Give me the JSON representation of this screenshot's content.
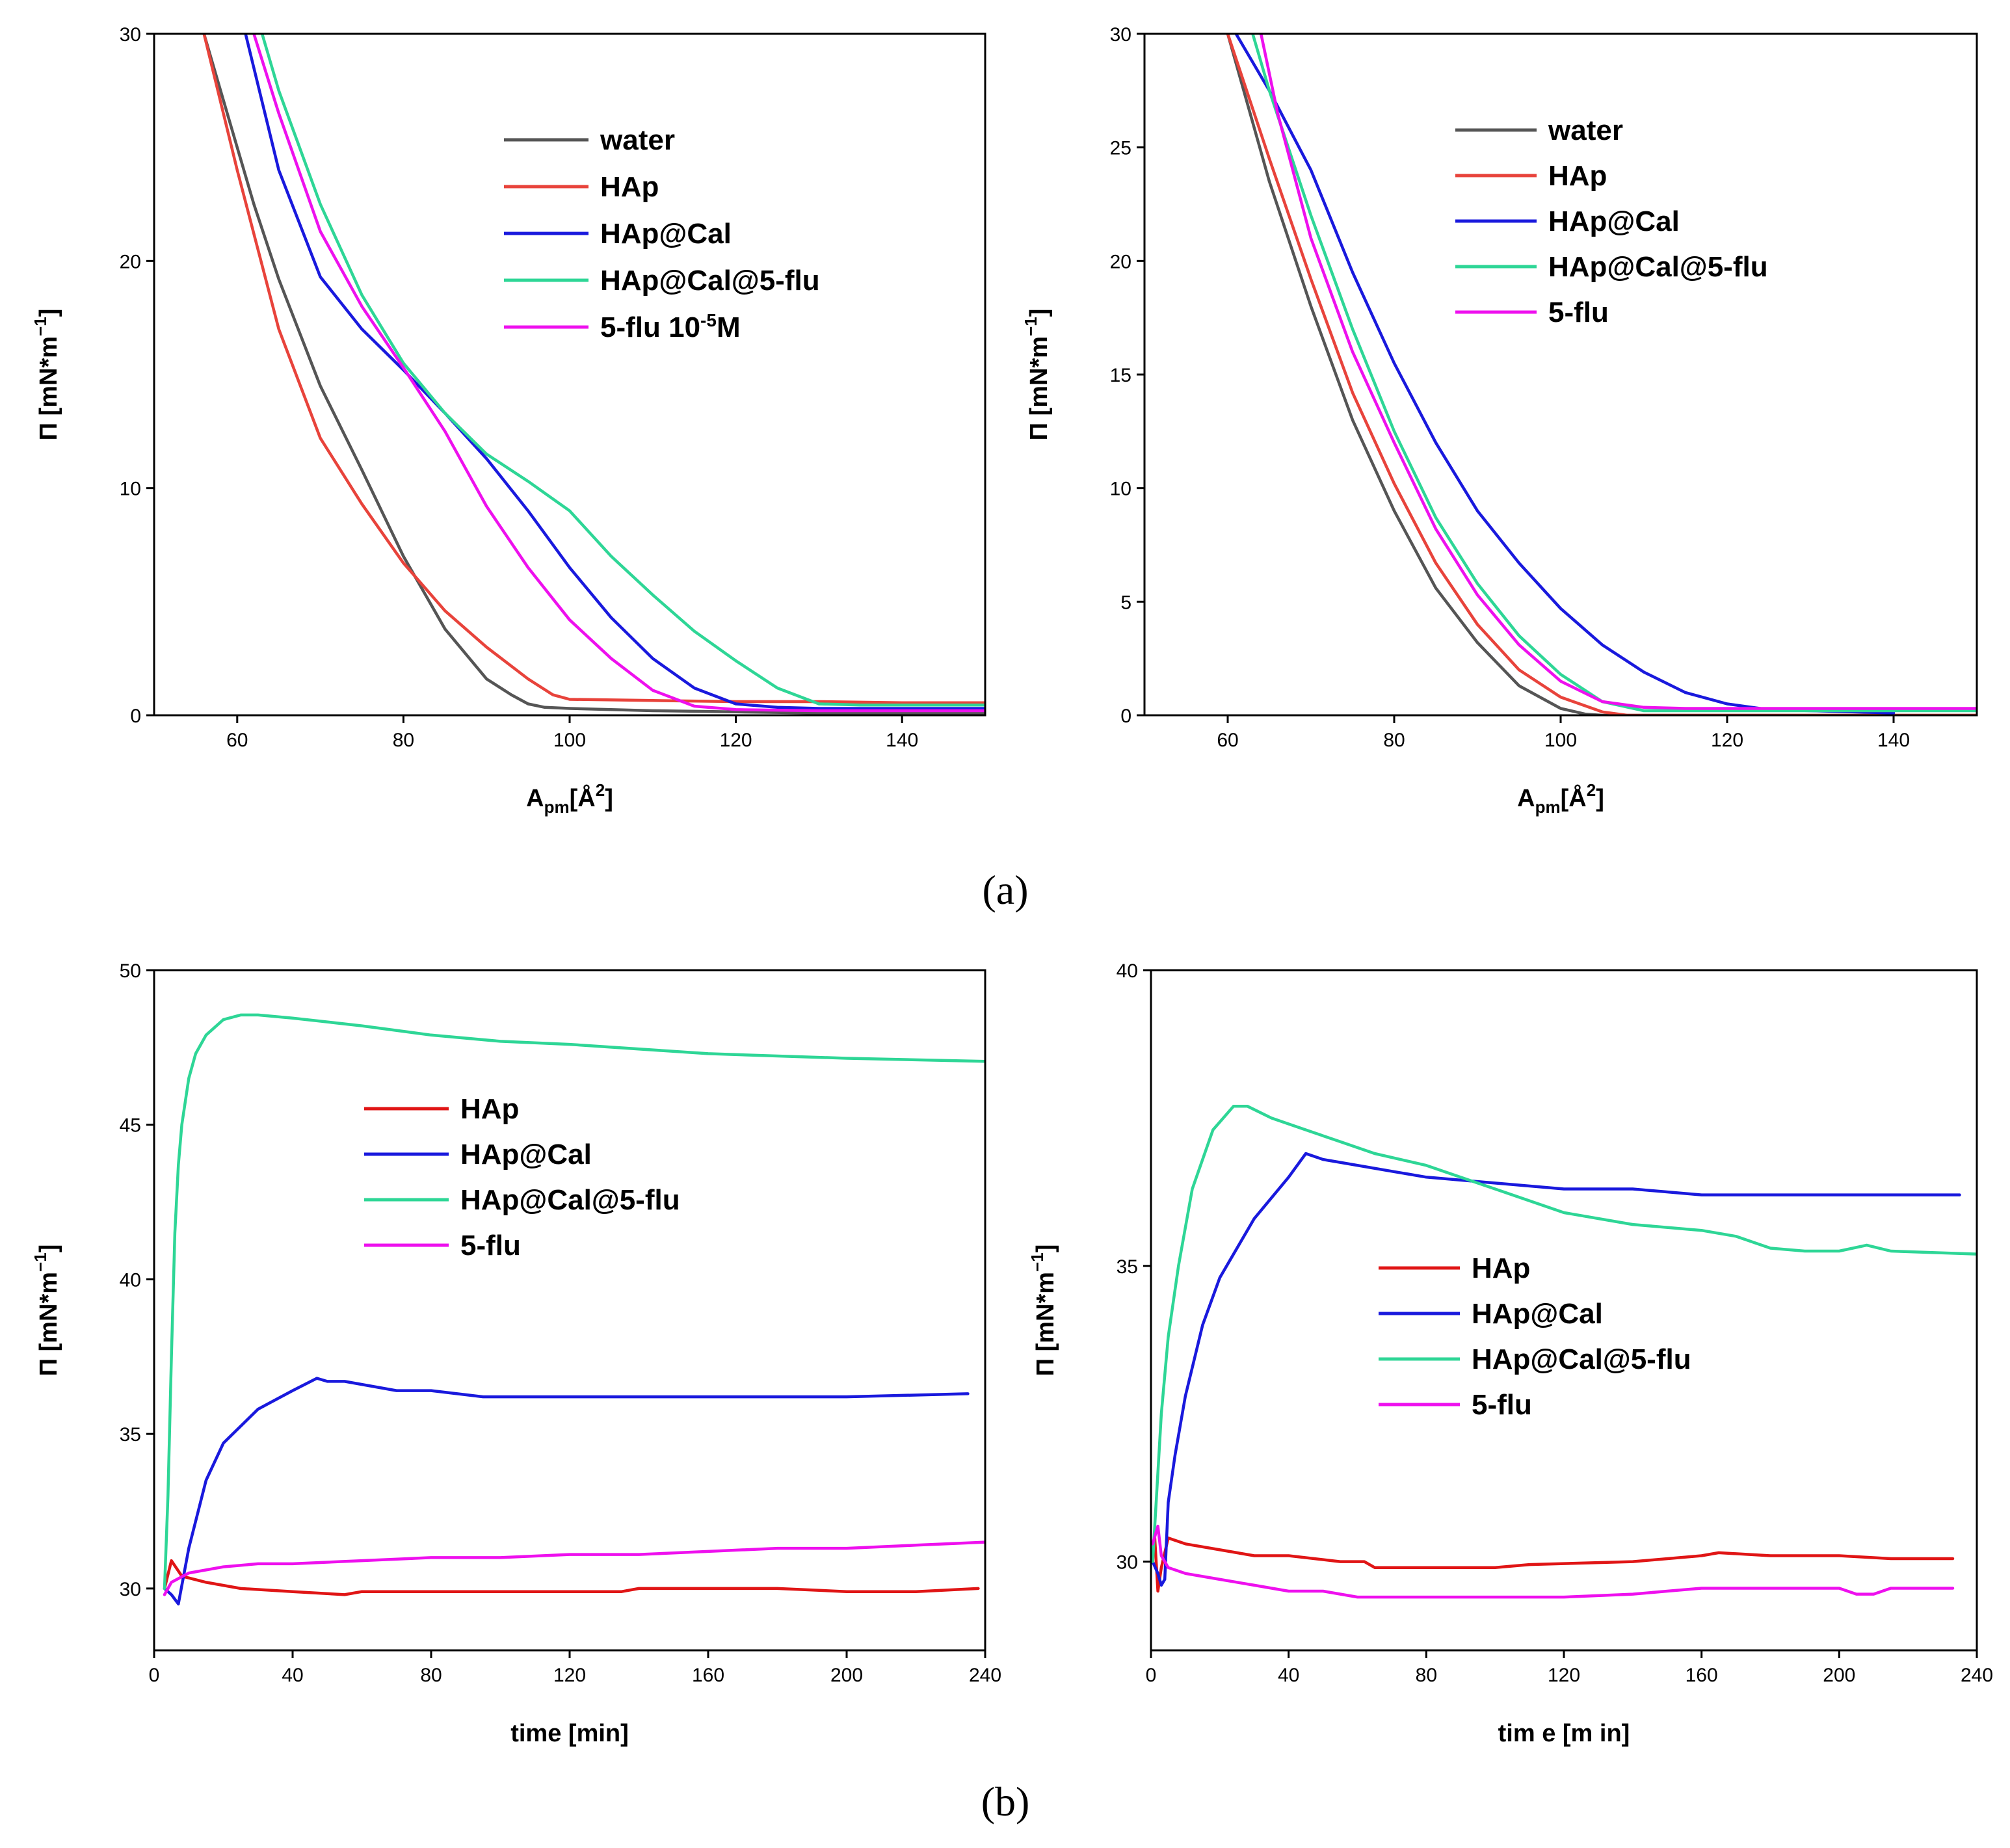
{
  "panel_labels": {
    "a": "(a)",
    "b": "(b)"
  },
  "chart_data": [
    {
      "type": "line",
      "id": "a1",
      "xlabel": {
        "main": "A",
        "sub": "pm",
        "rest": "[Å",
        "sup": "2",
        "end": "]"
      },
      "ylabel": {
        "main": "Π [mN*m",
        "sup": "−1",
        "end": "]"
      },
      "xlim": [
        50,
        150
      ],
      "ylim": [
        0,
        30
      ],
      "xticks": [
        60,
        80,
        100,
        120,
        140
      ],
      "yticks": [
        0,
        10,
        20,
        30
      ],
      "legend": "top-right",
      "series": [
        {
          "name": "water",
          "label": "water",
          "color": "#555555",
          "x": [
            56,
            58,
            60,
            62,
            65,
            70,
            75,
            80,
            85,
            90,
            93,
            95,
            97,
            100,
            110,
            120,
            130,
            140,
            150
          ],
          "y": [
            30,
            27.5,
            25,
            22.5,
            19.2,
            14.5,
            10.8,
            7,
            3.8,
            1.6,
            0.9,
            0.5,
            0.35,
            0.3,
            0.2,
            0.15,
            0.1,
            0.1,
            0.1
          ]
        },
        {
          "name": "HAp",
          "label": "HAp",
          "color": "#e8433b",
          "x": [
            56,
            60,
            65,
            70,
            75,
            80,
            85,
            90,
            95,
            98,
            100,
            110,
            120,
            130,
            140,
            150
          ],
          "y": [
            30,
            24,
            17,
            12.2,
            9.3,
            6.7,
            4.6,
            3,
            1.6,
            0.9,
            0.7,
            0.65,
            0.6,
            0.6,
            0.55,
            0.55
          ]
        },
        {
          "name": "HAp@Cal",
          "label": "HAp@Cal",
          "color": "#1919dd",
          "x": [
            61,
            65,
            70,
            75,
            80,
            85,
            90,
            95,
            100,
            105,
            110,
            115,
            120,
            125,
            130,
            140,
            150
          ],
          "y": [
            30,
            24,
            19.3,
            17,
            15.2,
            13.3,
            11.3,
            9,
            6.5,
            4.3,
            2.5,
            1.2,
            0.5,
            0.35,
            0.3,
            0.3,
            0.3
          ]
        },
        {
          "name": "HAp@Cal@5-flu",
          "label": "HAp@Cal@5-flu",
          "color": "#2ed696",
          "x": [
            63,
            65,
            70,
            75,
            80,
            85,
            90,
            95,
            100,
            105,
            110,
            115,
            120,
            125,
            130,
            135,
            140,
            150
          ],
          "y": [
            30,
            27.5,
            22.5,
            18.5,
            15.5,
            13.3,
            11.5,
            10.3,
            9,
            7,
            5.3,
            3.7,
            2.4,
            1.2,
            0.5,
            0.45,
            0.45,
            0.45
          ]
        },
        {
          "name": "5-flu 10-5M",
          "label": "5-flu 10",
          "label_sup": "-5",
          "label_end": "M",
          "color": "#ee10ee",
          "x": [
            62,
            65,
            70,
            75,
            80,
            85,
            90,
            95,
            100,
            105,
            110,
            115,
            120,
            130,
            140,
            150
          ],
          "y": [
            30,
            26.5,
            21.3,
            18,
            15.3,
            12.5,
            9.2,
            6.5,
            4.2,
            2.5,
            1.1,
            0.4,
            0.25,
            0.2,
            0.2,
            0.2
          ]
        }
      ]
    },
    {
      "type": "line",
      "id": "a2",
      "xlabel": {
        "main": "A",
        "sub": "pm",
        "rest": "[Å",
        "sup": "2",
        "end": "]"
      },
      "ylabel": {
        "main": "Π [mN*m",
        "sup": "−1",
        "end": "]"
      },
      "xlim": [
        50,
        150
      ],
      "ylim": [
        0,
        30
      ],
      "xticks": [
        60,
        80,
        100,
        120,
        140
      ],
      "yticks": [
        0,
        5,
        10,
        15,
        20,
        25,
        30
      ],
      "legend": "top-right",
      "series": [
        {
          "name": "water",
          "label": "water",
          "color": "#555555",
          "x": [
            60,
            65,
            70,
            75,
            80,
            85,
            90,
            95,
            100,
            103,
            105,
            120,
            140,
            150
          ],
          "y": [
            30,
            23.5,
            18,
            13,
            9,
            5.6,
            3.2,
            1.3,
            0.3,
            0.05,
            0,
            0,
            0,
            0
          ]
        },
        {
          "name": "HAp",
          "label": "HAp",
          "color": "#e8433b",
          "x": [
            60,
            65,
            70,
            75,
            80,
            85,
            90,
            95,
            100,
            105,
            108,
            110,
            120,
            150
          ],
          "y": [
            30,
            24.5,
            19.2,
            14.2,
            10.2,
            6.7,
            4,
            2,
            0.8,
            0.15,
            0,
            0,
            0,
            0
          ]
        },
        {
          "name": "HAp@Cal",
          "label": "HAp@Cal",
          "color": "#1919dd",
          "x": [
            61,
            65,
            70,
            75,
            80,
            85,
            90,
            95,
            100,
            105,
            110,
            115,
            120,
            125,
            130,
            135,
            140
          ],
          "y": [
            30,
            27.5,
            24,
            19.5,
            15.5,
            12,
            9,
            6.7,
            4.7,
            3.1,
            1.9,
            1,
            0.5,
            0.25,
            0.2,
            0.15,
            0.1
          ]
        },
        {
          "name": "HAp@Cal@5-flu",
          "label": "HAp@Cal@5-flu",
          "color": "#2ed696",
          "x": [
            63,
            65,
            70,
            75,
            80,
            85,
            90,
            95,
            100,
            105,
            110,
            112,
            120,
            150
          ],
          "y": [
            30,
            27.5,
            22,
            17,
            12.5,
            8.7,
            5.8,
            3.5,
            1.8,
            0.6,
            0.2,
            0.2,
            0.2,
            0.2
          ]
        },
        {
          "name": "5-flu",
          "label": "5-flu",
          "color": "#ee10ee",
          "x": [
            64,
            66,
            70,
            75,
            80,
            85,
            90,
            95,
            100,
            105,
            110,
            115,
            120,
            140,
            150
          ],
          "y": [
            30,
            26.5,
            21,
            16,
            12,
            8.2,
            5.3,
            3.1,
            1.5,
            0.6,
            0.35,
            0.3,
            0.3,
            0.3,
            0.3
          ]
        }
      ]
    },
    {
      "type": "line",
      "id": "b1",
      "xlabel": {
        "main": "time [min]"
      },
      "ylabel": {
        "main": "Π [mN*m",
        "sup": "−1",
        "end": "]"
      },
      "xlim": [
        0,
        240
      ],
      "ylim": [
        28,
        50
      ],
      "xticks": [
        0,
        40,
        80,
        120,
        160,
        200,
        240
      ],
      "yticks": [
        30,
        35,
        40,
        45,
        50
      ],
      "legend": "center",
      "series": [
        {
          "name": "HAp",
          "label": "HAp",
          "color": "#e01515",
          "x": [
            3,
            5,
            8,
            15,
            25,
            40,
            55,
            60,
            80,
            100,
            120,
            135,
            140,
            160,
            180,
            200,
            220,
            238
          ],
          "y": [
            30,
            30.9,
            30.4,
            30.2,
            30,
            29.9,
            29.8,
            29.9,
            29.9,
            29.9,
            29.9,
            29.9,
            30,
            30,
            30,
            29.9,
            29.9,
            30
          ]
        },
        {
          "name": "HAp@Cal",
          "label": "HAp@Cal",
          "color": "#1919dd",
          "x": [
            3,
            5,
            7,
            10,
            15,
            20,
            30,
            40,
            47,
            50,
            55,
            60,
            70,
            80,
            95,
            120,
            160,
            200,
            235
          ],
          "y": [
            30,
            29.8,
            29.5,
            31.3,
            33.5,
            34.7,
            35.8,
            36.4,
            36.8,
            36.7,
            36.7,
            36.6,
            36.4,
            36.4,
            36.2,
            36.2,
            36.2,
            36.2,
            36.3
          ]
        },
        {
          "name": "HAp@Cal@5-flu",
          "label": "HAp@Cal@5-flu",
          "color": "#2ed696",
          "x": [
            3,
            4,
            5,
            6,
            7,
            8,
            10,
            12,
            15,
            20,
            25,
            30,
            40,
            60,
            80,
            100,
            120,
            160,
            200,
            240
          ],
          "y": [
            30,
            33,
            37.5,
            41.5,
            43.7,
            45,
            46.5,
            47.3,
            47.9,
            48.4,
            48.55,
            48.55,
            48.45,
            48.2,
            47.9,
            47.7,
            47.6,
            47.3,
            47.15,
            47.05
          ]
        },
        {
          "name": "5-flu",
          "label": "5-flu",
          "color": "#ee10ee",
          "x": [
            3,
            5,
            10,
            20,
            30,
            40,
            60,
            80,
            100,
            120,
            140,
            160,
            180,
            200,
            220,
            240
          ],
          "y": [
            29.8,
            30.2,
            30.5,
            30.7,
            30.8,
            30.8,
            30.9,
            31,
            31,
            31.1,
            31.1,
            31.2,
            31.3,
            31.3,
            31.4,
            31.5
          ]
        }
      ]
    },
    {
      "type": "line",
      "id": "b2",
      "xlabel": {
        "main": "tim e [m in]"
      },
      "ylabel": {
        "main": "Π [mN*m",
        "sup": "−1",
        "end": "]"
      },
      "xlim": [
        0,
        240
      ],
      "ylim": [
        28.5,
        40
      ],
      "xticks": [
        0,
        40,
        80,
        120,
        160,
        200,
        240
      ],
      "yticks": [
        30,
        35,
        40
      ],
      "legend": "center-right",
      "series": [
        {
          "name": "HAp",
          "label": "HAp",
          "color": "#e01515",
          "x": [
            1,
            2,
            3,
            5,
            10,
            20,
            30,
            40,
            55,
            62,
            65,
            70,
            80,
            100,
            110,
            140,
            160,
            165,
            180,
            200,
            215,
            233
          ],
          "y": [
            30.5,
            29.5,
            29.9,
            30.4,
            30.3,
            30.2,
            30.1,
            30.1,
            30,
            30,
            29.9,
            29.9,
            29.9,
            29.9,
            29.95,
            30,
            30.1,
            30.15,
            30.1,
            30.1,
            30.05,
            30.05
          ]
        },
        {
          "name": "HAp@Cal",
          "label": "HAp@Cal",
          "color": "#1919dd",
          "x": [
            0.5,
            2,
            3,
            4,
            5,
            7,
            10,
            15,
            20,
            30,
            40,
            45,
            50,
            55,
            70,
            80,
            100,
            120,
            140,
            160,
            180,
            200,
            220,
            235
          ],
          "y": [
            30,
            29.8,
            29.6,
            29.7,
            31,
            31.8,
            32.8,
            34,
            34.8,
            35.8,
            36.5,
            36.9,
            36.8,
            36.75,
            36.6,
            36.5,
            36.4,
            36.3,
            36.3,
            36.2,
            36.2,
            36.2,
            36.2,
            36.2
          ]
        },
        {
          "name": "HAp@Cal@5-flu",
          "label": "HAp@Cal@5-flu",
          "color": "#2ed696",
          "x": [
            0.5,
            2,
            3,
            5,
            8,
            12,
            18,
            24,
            28,
            35,
            45,
            55,
            65,
            80,
            100,
            120,
            140,
            160,
            170,
            180,
            190,
            200,
            208,
            215,
            240
          ],
          "y": [
            30,
            31.5,
            32.5,
            33.8,
            35,
            36.3,
            37.3,
            37.7,
            37.7,
            37.5,
            37.3,
            37.1,
            36.9,
            36.7,
            36.3,
            35.9,
            35.7,
            35.6,
            35.5,
            35.3,
            35.25,
            35.25,
            35.35,
            35.25,
            35.2
          ]
        },
        {
          "name": "5-flu",
          "label": "5-flu",
          "color": "#ee10ee",
          "x": [
            0.5,
            2,
            3,
            5,
            10,
            20,
            30,
            40,
            50,
            60,
            70,
            80,
            100,
            120,
            140,
            150,
            160,
            180,
            200,
            205,
            210,
            215,
            233
          ],
          "y": [
            30.3,
            30.6,
            30.1,
            29.9,
            29.8,
            29.7,
            29.6,
            29.5,
            29.5,
            29.4,
            29.4,
            29.4,
            29.4,
            29.4,
            29.45,
            29.5,
            29.55,
            29.55,
            29.55,
            29.45,
            29.45,
            29.55,
            29.55
          ]
        }
      ]
    }
  ]
}
